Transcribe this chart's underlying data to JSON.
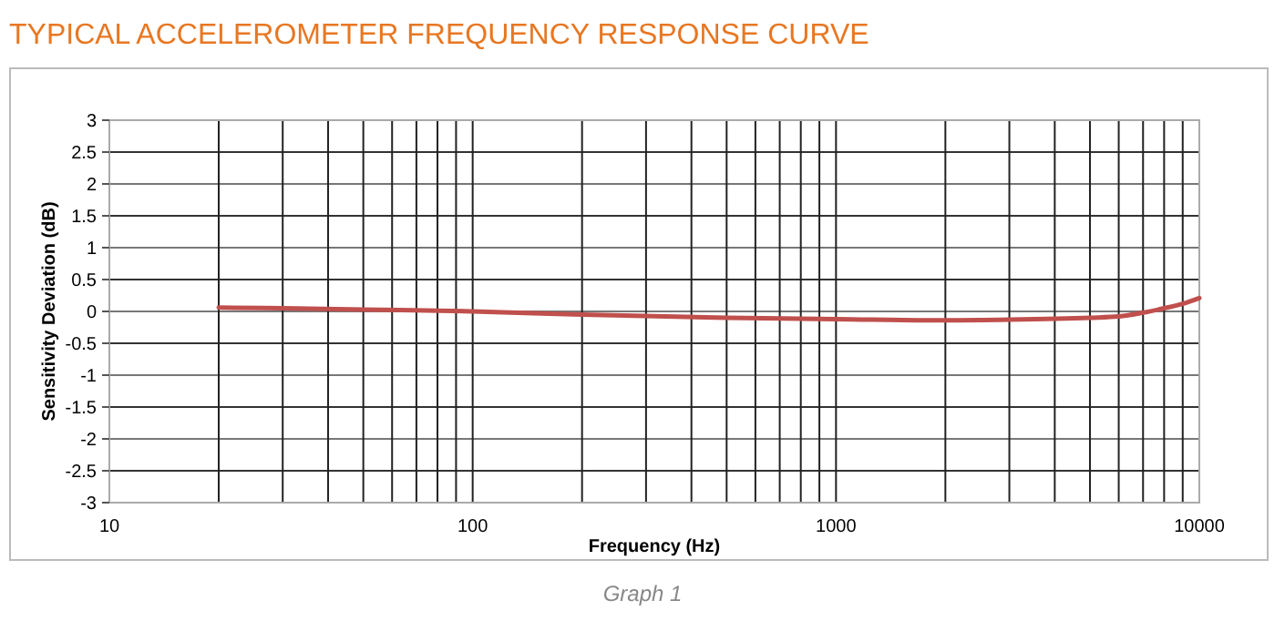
{
  "chart_data": {
    "type": "line",
    "title": "TYPICAL ACCELEROMETER FREQUENCY RESPONSE CURVE",
    "xlabel": "Frequency (Hz)",
    "ylabel": "Sensitivity Deviation (dB)",
    "annotations": [
      "Graph 1"
    ],
    "log": "x",
    "grid": true,
    "marker": "none",
    "line_style": "solid",
    "x": [
      20,
      30,
      50,
      100,
      200,
      500,
      1000,
      2000,
      3000,
      5000,
      6000,
      7000,
      8000,
      9000,
      10000
    ],
    "series": [
      {
        "color": "#c0504d",
        "values": [
          0.06,
          0.05,
          0.03,
          0,
          -0.05,
          -0.1,
          -0.12,
          -0.14,
          -0.13,
          -0.1,
          -0.08,
          -0.02,
          0.05,
          0.12,
          0.21
        ]
      }
    ],
    "xlim": [
      10,
      10000
    ],
    "ylim": [
      -3,
      3
    ],
    "xticks": [
      10,
      {
        "value": 20,
        "label": null
      },
      {
        "value": 30,
        "label": null
      },
      {
        "value": 40,
        "label": null
      },
      {
        "value": 50,
        "label": null
      },
      {
        "value": 60,
        "label": null
      },
      {
        "value": 70,
        "label": null
      },
      {
        "value": 80,
        "label": null
      },
      {
        "value": 90,
        "label": null
      },
      100,
      {
        "value": 200,
        "label": null
      },
      {
        "value": 300,
        "label": null
      },
      {
        "value": 400,
        "label": null
      },
      {
        "value": 500,
        "label": null
      },
      {
        "value": 600,
        "label": null
      },
      {
        "value": 700,
        "label": null
      },
      {
        "value": 800,
        "label": null
      },
      {
        "value": 900,
        "label": null
      },
      1000,
      {
        "value": 2000,
        "label": null
      },
      {
        "value": 3000,
        "label": null
      },
      {
        "value": 4000,
        "label": null
      },
      {
        "value": 5000,
        "label": null
      },
      {
        "value": 6000,
        "label": null
      },
      {
        "value": 7000,
        "label": null
      },
      {
        "value": 8000,
        "label": null
      },
      {
        "value": 9000,
        "label": null
      },
      10000
    ],
    "yticks": [
      -3,
      -2.5,
      -2,
      -1.5,
      -1,
      -0.5,
      0,
      0.5,
      1,
      1.5,
      2,
      2.5,
      3
    ]
  }
}
